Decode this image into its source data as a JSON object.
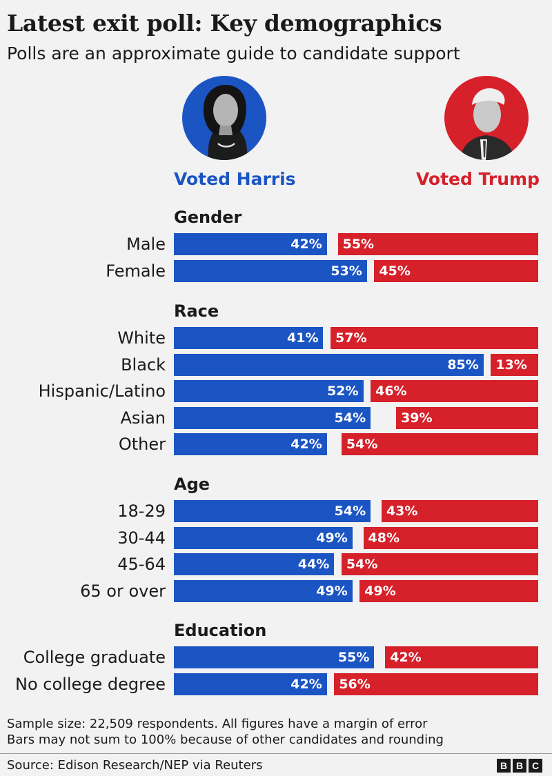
{
  "header": {
    "title": "Latest exit poll: Key demographics",
    "subtitle": "Polls are an approximate guide to candidate support"
  },
  "candidates": {
    "harris": {
      "label": "Voted Harris",
      "color": "#1b55c4"
    },
    "trump": {
      "label": "Voted Trump",
      "color": "#d6202a"
    }
  },
  "chart_data": {
    "type": "bar",
    "orientation": "horizontal-diverging",
    "xlim": [
      0,
      100
    ],
    "groups": [
      {
        "name": "Gender",
        "categories": [
          "Male",
          "Female"
        ],
        "harris": [
          42,
          53
        ],
        "trump": [
          55,
          45
        ]
      },
      {
        "name": "Race",
        "categories": [
          "White",
          "Black",
          "Hispanic/Latino",
          "Asian",
          "Other"
        ],
        "harris": [
          41,
          85,
          52,
          54,
          42
        ],
        "trump": [
          57,
          13,
          46,
          39,
          54
        ]
      },
      {
        "name": "Age",
        "categories": [
          "18-29",
          "30-44",
          "45-64",
          "65 or over"
        ],
        "harris": [
          54,
          49,
          44,
          49
        ],
        "trump": [
          43,
          48,
          54,
          49
        ]
      },
      {
        "name": "Education",
        "categories": [
          "College graduate",
          "No college degree"
        ],
        "harris": [
          55,
          42
        ],
        "trump": [
          42,
          56
        ]
      }
    ],
    "series": [
      {
        "name": "Voted Harris",
        "color": "#1b55c4"
      },
      {
        "name": "Voted Trump",
        "color": "#d6202a"
      }
    ]
  },
  "footer": {
    "note1": "Sample size: 22,509 respondents. All figures have a margin of error",
    "note2": "Bars may not sum to 100% because of other candidates and rounding",
    "source": "Source: Edison Research/NEP via Reuters",
    "logo": [
      "B",
      "B",
      "C"
    ]
  }
}
